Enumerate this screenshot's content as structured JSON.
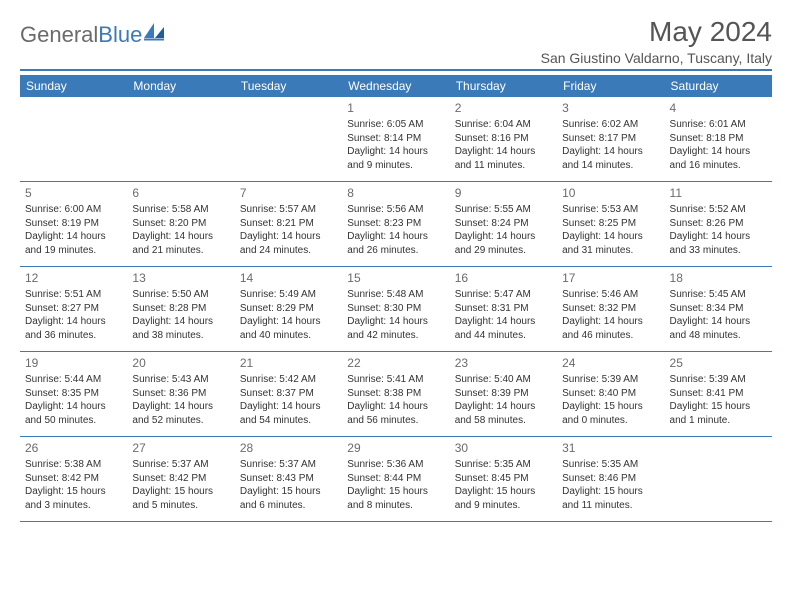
{
  "logo": {
    "text1": "General",
    "text2": "Blue"
  },
  "title": "May 2024",
  "location": "San Giustino Valdarno, Tuscany, Italy",
  "colors": {
    "header_bar": "#3b7ab8",
    "text": "#333333",
    "muted": "#6b6b6b",
    "background": "#ffffff"
  },
  "typography": {
    "title_fontsize": 28,
    "location_fontsize": 14,
    "weekday_fontsize": 12,
    "daynum_fontsize": 12,
    "body_fontsize": 10
  },
  "calendar": {
    "weekdays": [
      "Sunday",
      "Monday",
      "Tuesday",
      "Wednesday",
      "Thursday",
      "Friday",
      "Saturday"
    ],
    "weeks": [
      [
        {
          "num": "",
          "sunrise": "",
          "sunset": "",
          "daylight": ""
        },
        {
          "num": "",
          "sunrise": "",
          "sunset": "",
          "daylight": ""
        },
        {
          "num": "",
          "sunrise": "",
          "sunset": "",
          "daylight": ""
        },
        {
          "num": "1",
          "sunrise": "Sunrise: 6:05 AM",
          "sunset": "Sunset: 8:14 PM",
          "daylight": "Daylight: 14 hours and 9 minutes."
        },
        {
          "num": "2",
          "sunrise": "Sunrise: 6:04 AM",
          "sunset": "Sunset: 8:16 PM",
          "daylight": "Daylight: 14 hours and 11 minutes."
        },
        {
          "num": "3",
          "sunrise": "Sunrise: 6:02 AM",
          "sunset": "Sunset: 8:17 PM",
          "daylight": "Daylight: 14 hours and 14 minutes."
        },
        {
          "num": "4",
          "sunrise": "Sunrise: 6:01 AM",
          "sunset": "Sunset: 8:18 PM",
          "daylight": "Daylight: 14 hours and 16 minutes."
        }
      ],
      [
        {
          "num": "5",
          "sunrise": "Sunrise: 6:00 AM",
          "sunset": "Sunset: 8:19 PM",
          "daylight": "Daylight: 14 hours and 19 minutes."
        },
        {
          "num": "6",
          "sunrise": "Sunrise: 5:58 AM",
          "sunset": "Sunset: 8:20 PM",
          "daylight": "Daylight: 14 hours and 21 minutes."
        },
        {
          "num": "7",
          "sunrise": "Sunrise: 5:57 AM",
          "sunset": "Sunset: 8:21 PM",
          "daylight": "Daylight: 14 hours and 24 minutes."
        },
        {
          "num": "8",
          "sunrise": "Sunrise: 5:56 AM",
          "sunset": "Sunset: 8:23 PM",
          "daylight": "Daylight: 14 hours and 26 minutes."
        },
        {
          "num": "9",
          "sunrise": "Sunrise: 5:55 AM",
          "sunset": "Sunset: 8:24 PM",
          "daylight": "Daylight: 14 hours and 29 minutes."
        },
        {
          "num": "10",
          "sunrise": "Sunrise: 5:53 AM",
          "sunset": "Sunset: 8:25 PM",
          "daylight": "Daylight: 14 hours and 31 minutes."
        },
        {
          "num": "11",
          "sunrise": "Sunrise: 5:52 AM",
          "sunset": "Sunset: 8:26 PM",
          "daylight": "Daylight: 14 hours and 33 minutes."
        }
      ],
      [
        {
          "num": "12",
          "sunrise": "Sunrise: 5:51 AM",
          "sunset": "Sunset: 8:27 PM",
          "daylight": "Daylight: 14 hours and 36 minutes."
        },
        {
          "num": "13",
          "sunrise": "Sunrise: 5:50 AM",
          "sunset": "Sunset: 8:28 PM",
          "daylight": "Daylight: 14 hours and 38 minutes."
        },
        {
          "num": "14",
          "sunrise": "Sunrise: 5:49 AM",
          "sunset": "Sunset: 8:29 PM",
          "daylight": "Daylight: 14 hours and 40 minutes."
        },
        {
          "num": "15",
          "sunrise": "Sunrise: 5:48 AM",
          "sunset": "Sunset: 8:30 PM",
          "daylight": "Daylight: 14 hours and 42 minutes."
        },
        {
          "num": "16",
          "sunrise": "Sunrise: 5:47 AM",
          "sunset": "Sunset: 8:31 PM",
          "daylight": "Daylight: 14 hours and 44 minutes."
        },
        {
          "num": "17",
          "sunrise": "Sunrise: 5:46 AM",
          "sunset": "Sunset: 8:32 PM",
          "daylight": "Daylight: 14 hours and 46 minutes."
        },
        {
          "num": "18",
          "sunrise": "Sunrise: 5:45 AM",
          "sunset": "Sunset: 8:34 PM",
          "daylight": "Daylight: 14 hours and 48 minutes."
        }
      ],
      [
        {
          "num": "19",
          "sunrise": "Sunrise: 5:44 AM",
          "sunset": "Sunset: 8:35 PM",
          "daylight": "Daylight: 14 hours and 50 minutes."
        },
        {
          "num": "20",
          "sunrise": "Sunrise: 5:43 AM",
          "sunset": "Sunset: 8:36 PM",
          "daylight": "Daylight: 14 hours and 52 minutes."
        },
        {
          "num": "21",
          "sunrise": "Sunrise: 5:42 AM",
          "sunset": "Sunset: 8:37 PM",
          "daylight": "Daylight: 14 hours and 54 minutes."
        },
        {
          "num": "22",
          "sunrise": "Sunrise: 5:41 AM",
          "sunset": "Sunset: 8:38 PM",
          "daylight": "Daylight: 14 hours and 56 minutes."
        },
        {
          "num": "23",
          "sunrise": "Sunrise: 5:40 AM",
          "sunset": "Sunset: 8:39 PM",
          "daylight": "Daylight: 14 hours and 58 minutes."
        },
        {
          "num": "24",
          "sunrise": "Sunrise: 5:39 AM",
          "sunset": "Sunset: 8:40 PM",
          "daylight": "Daylight: 15 hours and 0 minutes."
        },
        {
          "num": "25",
          "sunrise": "Sunrise: 5:39 AM",
          "sunset": "Sunset: 8:41 PM",
          "daylight": "Daylight: 15 hours and 1 minute."
        }
      ],
      [
        {
          "num": "26",
          "sunrise": "Sunrise: 5:38 AM",
          "sunset": "Sunset: 8:42 PM",
          "daylight": "Daylight: 15 hours and 3 minutes."
        },
        {
          "num": "27",
          "sunrise": "Sunrise: 5:37 AM",
          "sunset": "Sunset: 8:42 PM",
          "daylight": "Daylight: 15 hours and 5 minutes."
        },
        {
          "num": "28",
          "sunrise": "Sunrise: 5:37 AM",
          "sunset": "Sunset: 8:43 PM",
          "daylight": "Daylight: 15 hours and 6 minutes."
        },
        {
          "num": "29",
          "sunrise": "Sunrise: 5:36 AM",
          "sunset": "Sunset: 8:44 PM",
          "daylight": "Daylight: 15 hours and 8 minutes."
        },
        {
          "num": "30",
          "sunrise": "Sunrise: 5:35 AM",
          "sunset": "Sunset: 8:45 PM",
          "daylight": "Daylight: 15 hours and 9 minutes."
        },
        {
          "num": "31",
          "sunrise": "Sunrise: 5:35 AM",
          "sunset": "Sunset: 8:46 PM",
          "daylight": "Daylight: 15 hours and 11 minutes."
        },
        {
          "num": "",
          "sunrise": "",
          "sunset": "",
          "daylight": ""
        }
      ]
    ]
  }
}
